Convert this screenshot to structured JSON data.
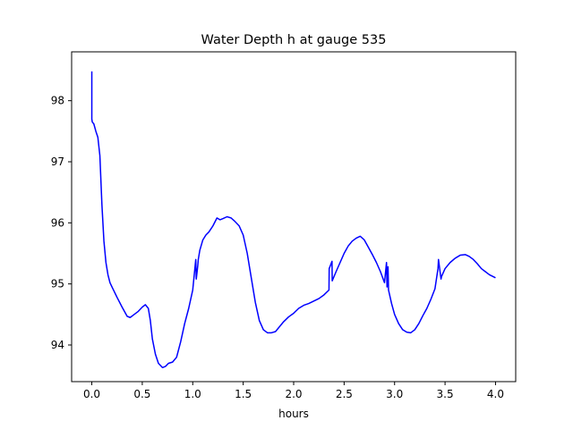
{
  "chart_data": {
    "type": "line",
    "title": "Water Depth h at gauge 535",
    "xlabel": "hours",
    "ylabel": "",
    "xlim": [
      -0.2,
      4.2
    ],
    "ylim": [
      93.4,
      98.8
    ],
    "xticks": [
      0.0,
      0.5,
      1.0,
      1.5,
      2.0,
      2.5,
      3.0,
      3.5,
      4.0
    ],
    "xtick_labels": [
      "0.0",
      "0.5",
      "1.0",
      "1.5",
      "2.0",
      "2.5",
      "3.0",
      "3.5",
      "4.0"
    ],
    "yticks": [
      94,
      95,
      96,
      97,
      98
    ],
    "ytick_labels": [
      "94",
      "95",
      "96",
      "97",
      "98"
    ],
    "grid": false,
    "colors": {
      "line": "#0000ff",
      "axes": "#000000",
      "background": "#ffffff"
    },
    "series": [
      {
        "x": [
          0.0,
          0.0,
          0.005,
          0.02,
          0.04,
          0.06,
          0.08,
          0.1,
          0.12,
          0.14,
          0.16,
          0.18,
          0.2,
          0.25,
          0.3,
          0.35,
          0.38,
          0.42,
          0.46,
          0.5,
          0.53,
          0.56,
          0.58,
          0.6,
          0.63,
          0.66,
          0.7,
          0.73,
          0.76,
          0.8,
          0.84,
          0.88,
          0.92,
          0.96,
          1.0,
          1.03,
          1.035,
          1.05,
          1.055,
          1.07,
          1.1,
          1.13,
          1.16,
          1.2,
          1.24,
          1.27,
          1.3,
          1.34,
          1.38,
          1.42,
          1.46,
          1.5,
          1.54,
          1.58,
          1.62,
          1.66,
          1.7,
          1.74,
          1.78,
          1.82,
          1.86,
          1.9,
          1.95,
          2.0,
          2.05,
          2.1,
          2.15,
          2.2,
          2.25,
          2.3,
          2.35,
          2.352,
          2.38,
          2.382,
          2.42,
          2.46,
          2.5,
          2.54,
          2.58,
          2.62,
          2.66,
          2.7,
          2.74,
          2.78,
          2.82,
          2.86,
          2.9,
          2.92,
          2.925,
          2.935,
          2.94,
          2.97,
          3.0,
          3.04,
          3.08,
          3.12,
          3.16,
          3.2,
          3.24,
          3.28,
          3.32,
          3.36,
          3.4,
          3.43,
          3.435,
          3.46,
          3.465,
          3.5,
          3.55,
          3.6,
          3.65,
          3.7,
          3.74,
          3.78,
          3.82,
          3.86,
          3.9,
          3.94,
          4.0
        ],
        "y": [
          98.48,
          97.7,
          97.65,
          97.62,
          97.5,
          97.4,
          97.1,
          96.3,
          95.7,
          95.35,
          95.15,
          95.02,
          94.95,
          94.78,
          94.62,
          94.47,
          94.45,
          94.5,
          94.55,
          94.62,
          94.66,
          94.6,
          94.4,
          94.1,
          93.85,
          93.7,
          93.63,
          93.65,
          93.7,
          93.72,
          93.8,
          94.05,
          94.35,
          94.6,
          94.9,
          95.4,
          95.08,
          95.3,
          95.4,
          95.55,
          95.72,
          95.8,
          95.85,
          95.95,
          96.08,
          96.05,
          96.07,
          96.1,
          96.08,
          96.02,
          95.95,
          95.8,
          95.5,
          95.1,
          94.7,
          94.4,
          94.25,
          94.2,
          94.2,
          94.22,
          94.3,
          94.38,
          94.46,
          94.52,
          94.6,
          94.65,
          94.68,
          94.72,
          94.76,
          94.82,
          94.9,
          95.25,
          95.37,
          95.05,
          95.2,
          95.35,
          95.5,
          95.62,
          95.7,
          95.75,
          95.78,
          95.72,
          95.6,
          95.48,
          95.35,
          95.2,
          95.02,
          95.35,
          94.95,
          95.28,
          94.9,
          94.68,
          94.5,
          94.35,
          94.25,
          94.21,
          94.2,
          94.25,
          94.35,
          94.48,
          94.6,
          94.75,
          94.92,
          95.25,
          95.4,
          95.08,
          95.12,
          95.25,
          95.35,
          95.42,
          95.47,
          95.48,
          95.45,
          95.4,
          95.33,
          95.25,
          95.2,
          95.15,
          95.1
        ]
      }
    ]
  }
}
